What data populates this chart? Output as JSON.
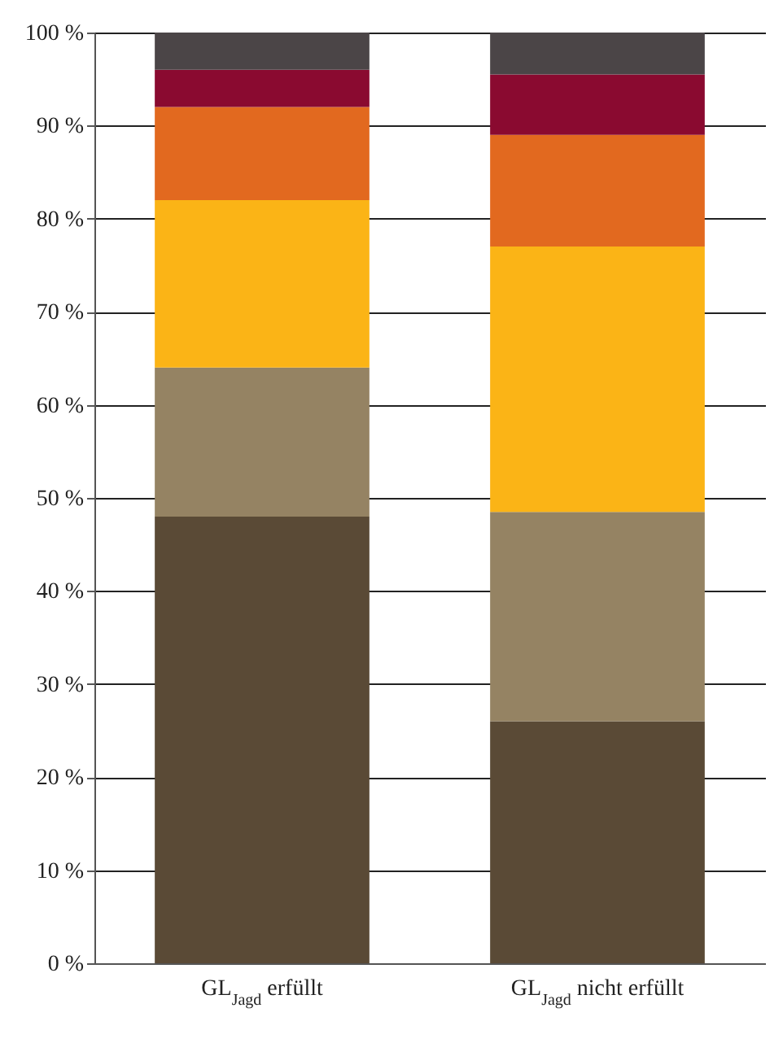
{
  "chart_data": {
    "type": "bar",
    "stacked": true,
    "categories": [
      "GL$_{Jagd}$ erfüllt",
      "GL$_{Jagd}$ nicht erfüllt"
    ],
    "series": [
      {
        "color": "#5a4a36",
        "values": [
          48,
          26
        ]
      },
      {
        "color": "#958363",
        "values": [
          16,
          22.5
        ]
      },
      {
        "color": "#fbb416",
        "values": [
          18,
          28.5
        ]
      },
      {
        "color": "#e2691f",
        "values": [
          10,
          12
        ]
      },
      {
        "color": "#8a0a30",
        "values": [
          4,
          6.5
        ]
      },
      {
        "color": "#4b4547",
        "values": [
          4,
          4.5
        ]
      }
    ],
    "ylim": [
      0,
      100
    ],
    "yticks": [
      {
        "value": 0,
        "label": "0 %"
      },
      {
        "value": 10,
        "label": "10 %"
      },
      {
        "value": 20,
        "label": "20 %"
      },
      {
        "value": 30,
        "label": "30 %"
      },
      {
        "value": 40,
        "label": "40 %"
      },
      {
        "value": 50,
        "label": "50 %"
      },
      {
        "value": 60,
        "label": "60 %"
      },
      {
        "value": 70,
        "label": "70 %"
      },
      {
        "value": 80,
        "label": "80 %"
      },
      {
        "value": 90,
        "label": "90 %"
      },
      {
        "value": 100,
        "label": "100 %"
      }
    ],
    "grid": "y",
    "legend": false
  }
}
